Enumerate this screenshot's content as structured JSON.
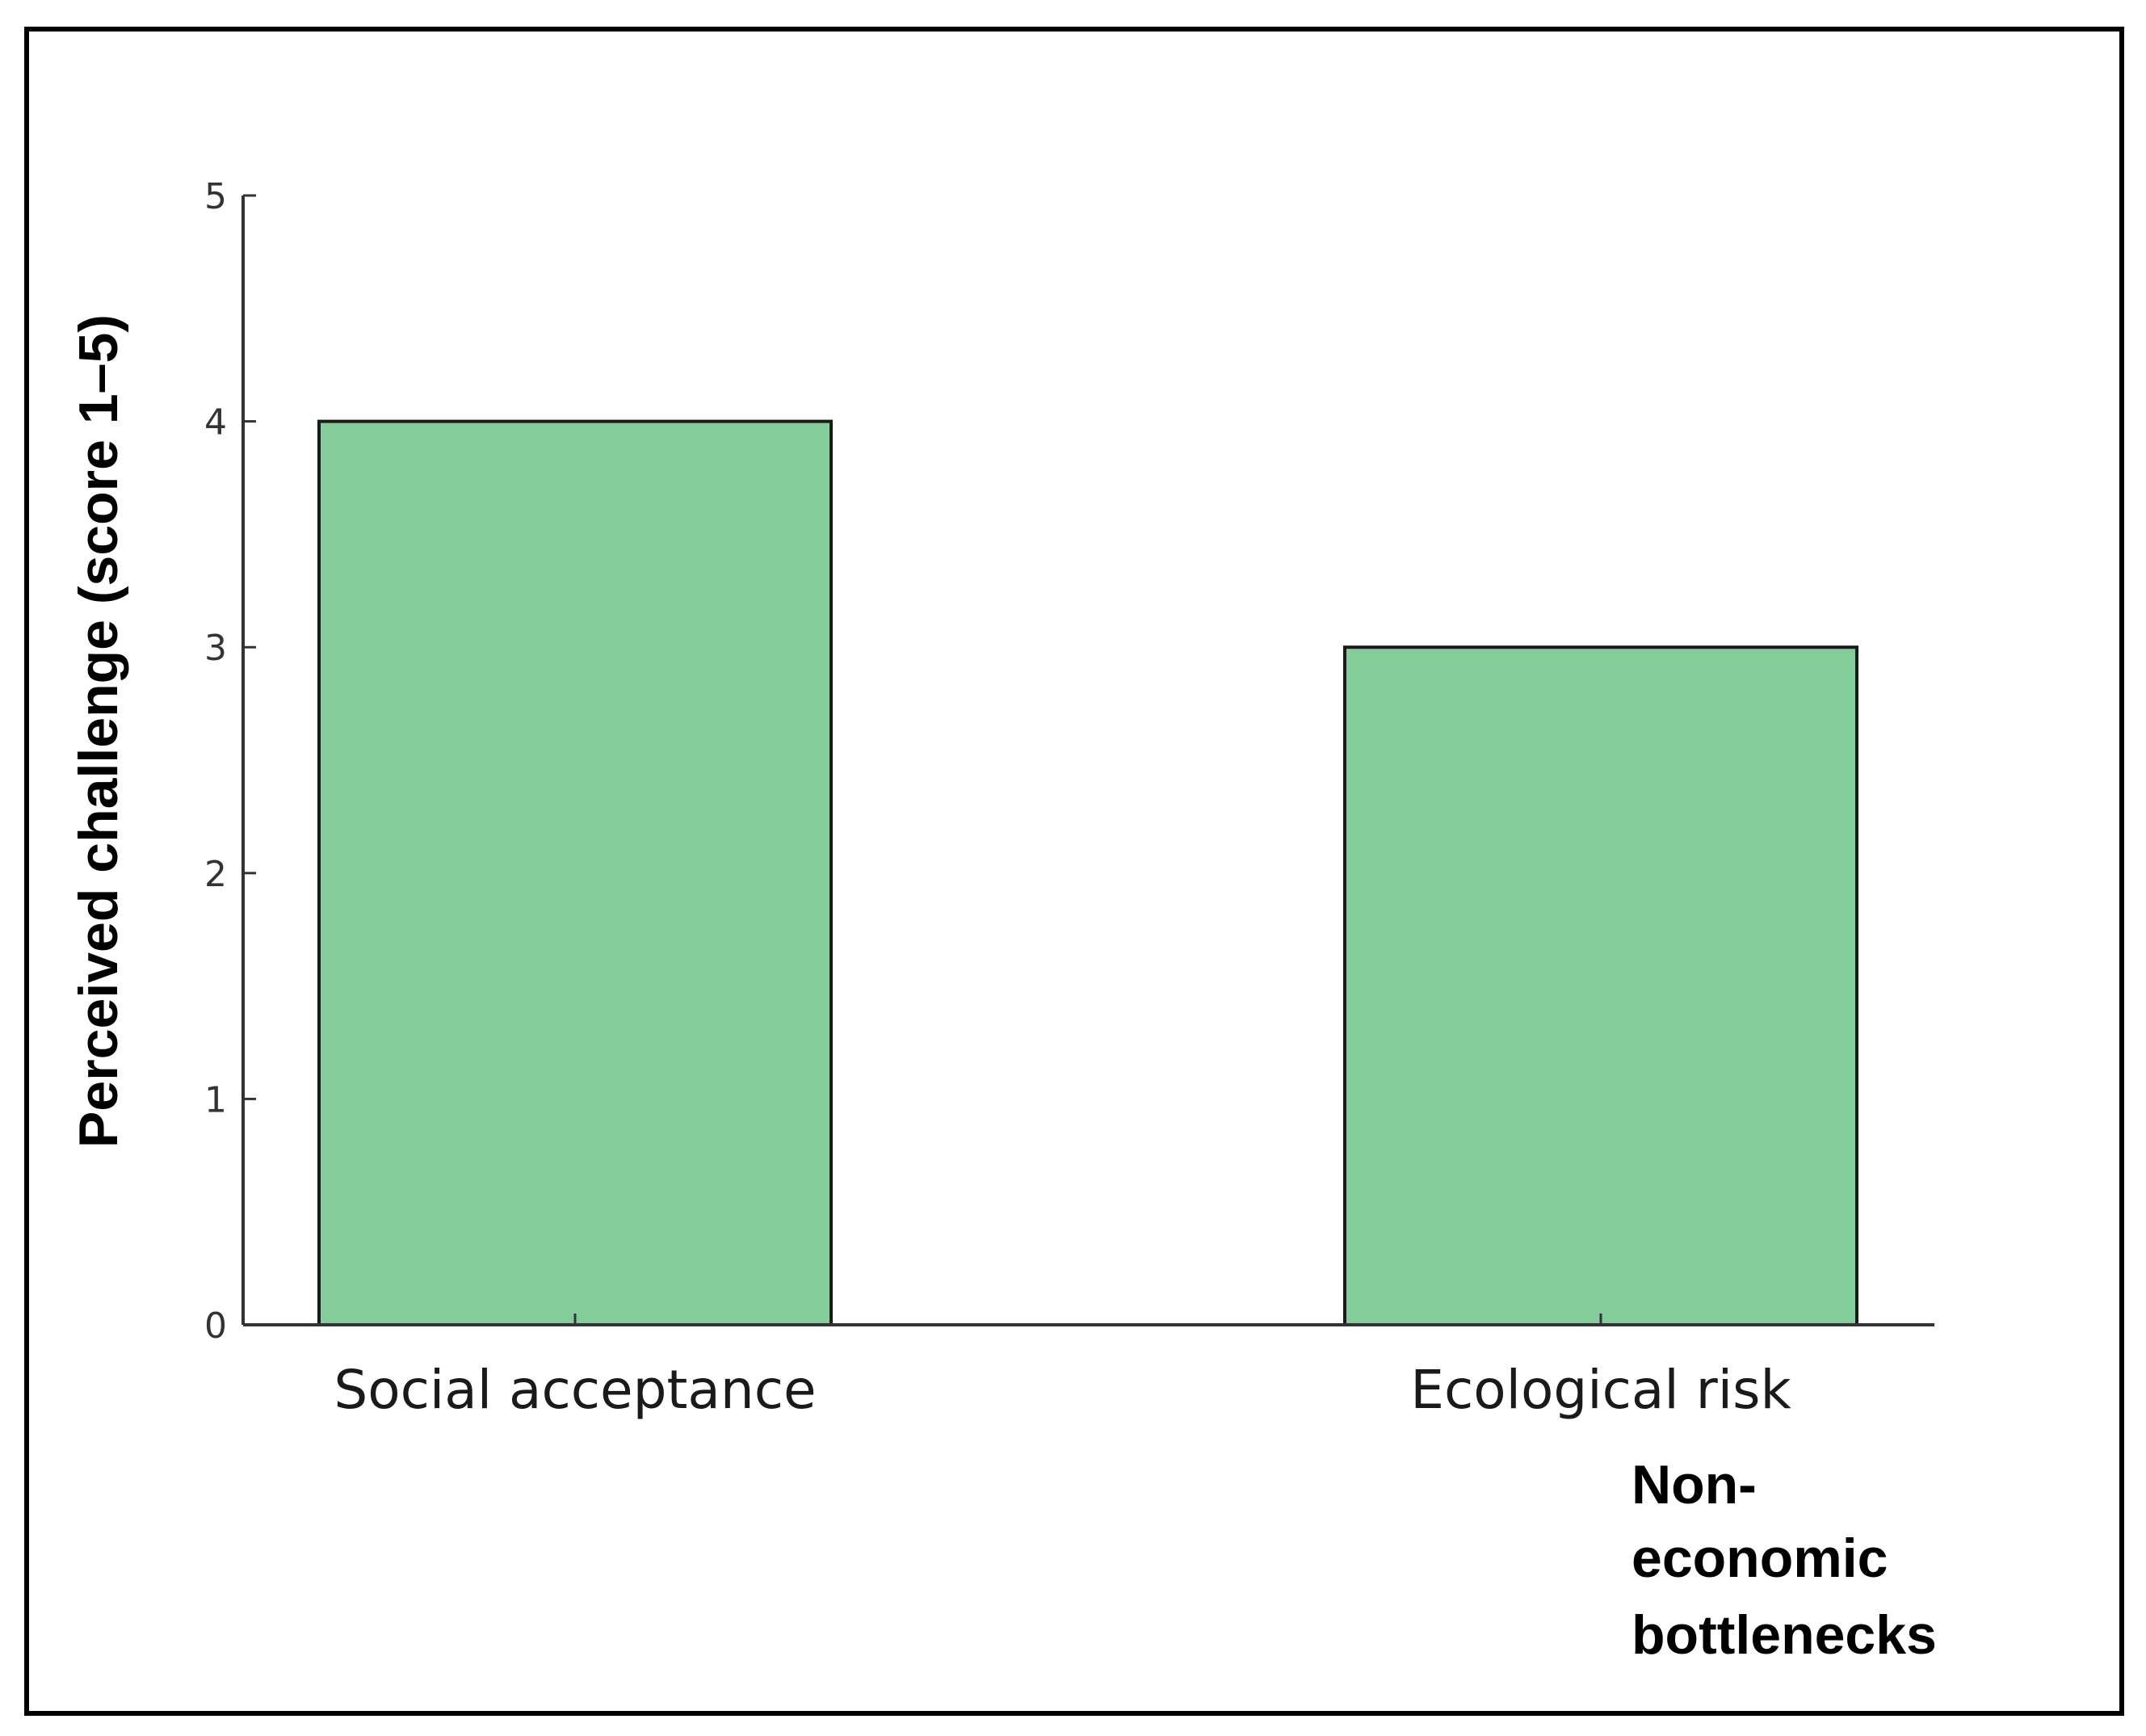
{
  "chart_data": {
    "type": "bar",
    "categories": [
      "Social acceptance",
      "Ecological risk"
    ],
    "values": [
      4,
      3
    ],
    "title": "",
    "xlabel": "Non-economic bottlenecks",
    "xlabel_lines": [
      "Non-",
      "economic",
      "bottlenecks"
    ],
    "ylabel": "Perceived challenge (score 1–5)",
    "ylim": [
      0,
      5
    ],
    "yticks": [
      0,
      1,
      2,
      3,
      4,
      5
    ],
    "grid": false,
    "bar_color": "#82cd9a",
    "bar_edge_color": "#1a1a1a",
    "axis_color": "#333333"
  }
}
